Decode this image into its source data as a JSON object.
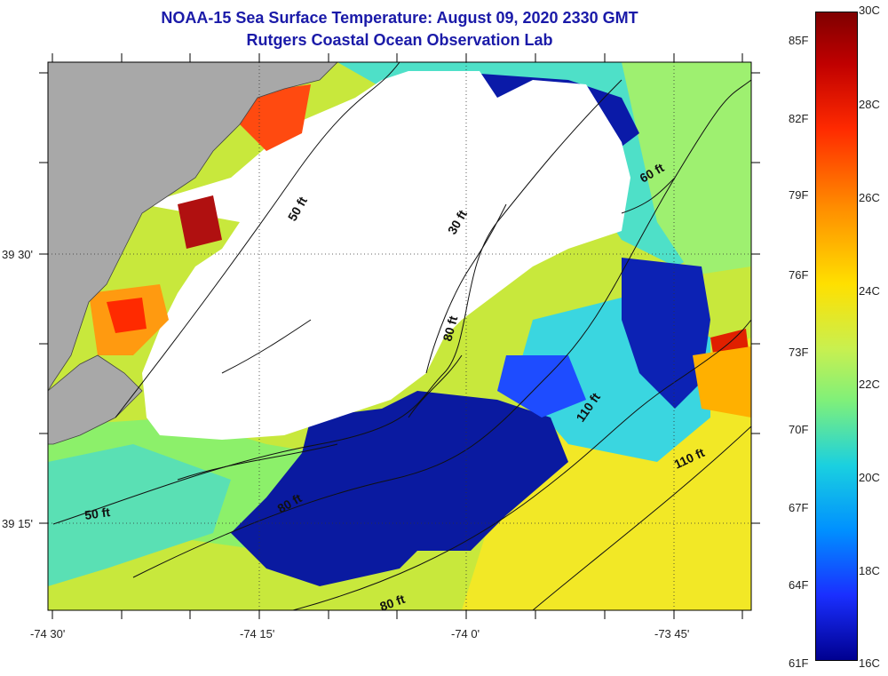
{
  "title": "NOAA-15 Sea Surface Temperature:  August 09, 2020 2330 GMT",
  "subtitle": "Rutgers Coastal Ocean Observation Lab",
  "lat_labels": [
    "39 30'",
    "39 15'"
  ],
  "lon_labels": [
    "-74 30'",
    "-74 15'",
    "-74 0'",
    "-73 45'"
  ],
  "depth_labels": [
    "50 ft",
    "30 ft",
    "80 ft",
    "60 ft",
    "110 ft",
    "110 ft",
    "80 ft",
    "50 ft",
    "80 ft"
  ],
  "colorbar": {
    "celsius": [
      "30C",
      "28C",
      "26C",
      "24C",
      "22C",
      "20C",
      "18C",
      "16C"
    ],
    "fahrenheit": [
      "85F",
      "82F",
      "79F",
      "76F",
      "73F",
      "70F",
      "67F",
      "64F",
      "61F"
    ]
  },
  "colors": {
    "land": "#a8a8a8",
    "cloud": "#ffffff",
    "title": "#1a1aa8"
  }
}
